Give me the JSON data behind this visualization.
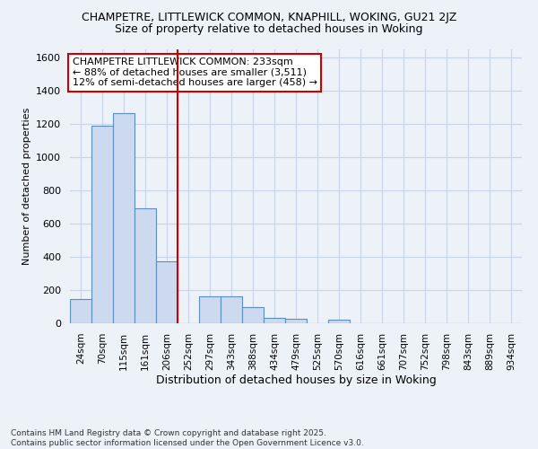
{
  "title_line1": "CHAMPETRE, LITTLEWICK COMMON, KNAPHILL, WOKING, GU21 2JZ",
  "title_line2": "Size of property relative to detached houses in Woking",
  "xlabel": "Distribution of detached houses by size in Woking",
  "ylabel": "Number of detached properties",
  "categories": [
    "24sqm",
    "70sqm",
    "115sqm",
    "161sqm",
    "206sqm",
    "252sqm",
    "297sqm",
    "343sqm",
    "388sqm",
    "434sqm",
    "479sqm",
    "525sqm",
    "570sqm",
    "616sqm",
    "661sqm",
    "707sqm",
    "752sqm",
    "798sqm",
    "843sqm",
    "889sqm",
    "934sqm"
  ],
  "values": [
    145,
    1190,
    1265,
    690,
    375,
    0,
    165,
    165,
    95,
    35,
    25,
    0,
    20,
    0,
    0,
    0,
    0,
    0,
    0,
    0,
    0
  ],
  "bar_color": "#ccd9ee",
  "bar_edge_color": "#5b8ec4",
  "grid_color": "#c8d4e8",
  "background_color": "#edf1f8",
  "vline_color": "#cc0000",
  "annotation_text": "CHAMPETRE LITTLEWICK COMMON: 233sqm\n← 88% of detached houses are smaller (3,511)\n12% of semi-detached houses are larger (458) →",
  "annotation_box_color": "white",
  "annotation_box_edge": "#cc0000",
  "ylim": [
    0,
    1650
  ],
  "yticks": [
    0,
    200,
    400,
    600,
    800,
    1000,
    1200,
    1400,
    1600
  ],
  "footer": "Contains HM Land Registry data © Crown copyright and database right 2025.\nContains public sector information licensed under the Open Government Licence v3.0."
}
